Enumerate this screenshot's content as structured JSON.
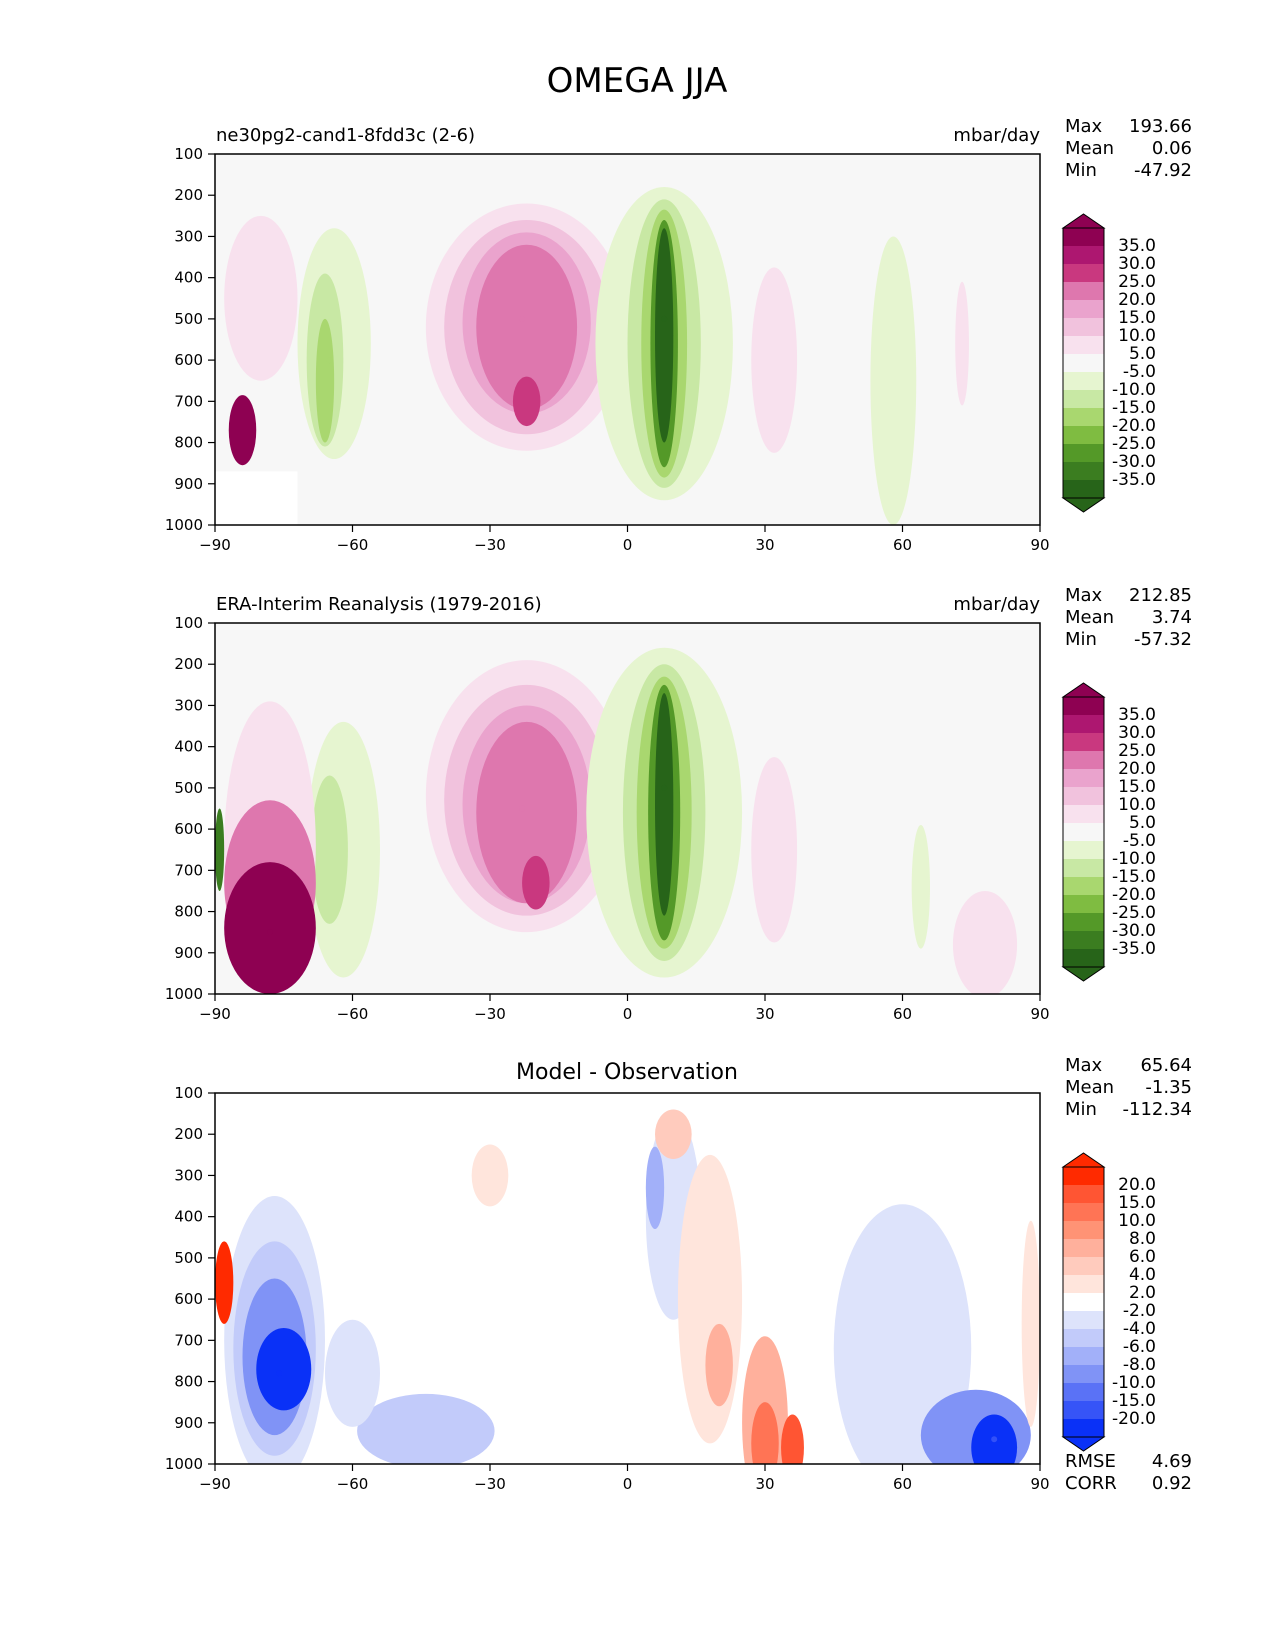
{
  "figure_title": "OMEGA JJA",
  "chart_data": [
    {
      "type": "contour",
      "title": "ne30pg2-cand1-8fdd3c (2-6)",
      "units": "mbar/day",
      "xlabel": "",
      "ylabel": "",
      "xlim": [
        -90,
        90
      ],
      "ylim": [
        1000,
        100
      ],
      "x_ticks": [
        "−90",
        "−60",
        "−30",
        "0",
        "30",
        "60",
        "90"
      ],
      "y_ticks": [
        "100",
        "200",
        "300",
        "400",
        "500",
        "600",
        "700",
        "800",
        "900",
        "1000"
      ],
      "stats": [
        {
          "label": "Max",
          "value": "193.66"
        },
        {
          "label": "Mean",
          "value": "0.06"
        },
        {
          "label": "Min",
          "value": "-47.92"
        }
      ],
      "colorbar_levels": [
        "35.0",
        "30.0",
        "25.0",
        "20.0",
        "15.0",
        "10.0",
        "5.0",
        "-5.0",
        "-10.0",
        "-15.0",
        "-20.0",
        "-25.0",
        "-30.0",
        "-35.0"
      ],
      "colorbar_colors": [
        "#8e0152",
        "#ad1770",
        "#c9387f",
        "#de77ae",
        "#eaa3cd",
        "#f1c2dd",
        "#f8e1ee",
        "#f7f7f7",
        "#e6f5d0",
        "#c8e8a4",
        "#a9d76f",
        "#7fbc41",
        "#549928",
        "#3b7d20",
        "#276419"
      ],
      "features": [
        {
          "name": "ascent-core-itcz",
          "x": 8,
          "p": 500,
          "color": "#276419"
        },
        {
          "name": "descent-core-south-subtropics",
          "x": -23,
          "p": 500,
          "color": "#de77ae"
        },
        {
          "name": "ascent-southern-midlatitudes",
          "x": -65,
          "p": 600,
          "color": "#a9d76f"
        }
      ]
    },
    {
      "type": "contour",
      "title": "ERA-Interim Reanalysis (1979-2016)",
      "units": "mbar/day",
      "xlabel": "",
      "ylabel": "",
      "xlim": [
        -90,
        90
      ],
      "ylim": [
        1000,
        100
      ],
      "x_ticks": [
        "−90",
        "−60",
        "−30",
        "0",
        "30",
        "60",
        "90"
      ],
      "y_ticks": [
        "100",
        "200",
        "300",
        "400",
        "500",
        "600",
        "700",
        "800",
        "900",
        "1000"
      ],
      "stats": [
        {
          "label": "Max",
          "value": "212.85"
        },
        {
          "label": "Mean",
          "value": "3.74"
        },
        {
          "label": "Min",
          "value": "-57.32"
        }
      ],
      "colorbar_levels": [
        "35.0",
        "30.0",
        "25.0",
        "20.0",
        "15.0",
        "10.0",
        "5.0",
        "-5.0",
        "-10.0",
        "-15.0",
        "-20.0",
        "-25.0",
        "-30.0",
        "-35.0"
      ],
      "colorbar_colors": [
        "#8e0152",
        "#ad1770",
        "#c9387f",
        "#de77ae",
        "#eaa3cd",
        "#f1c2dd",
        "#f8e1ee",
        "#f7f7f7",
        "#e6f5d0",
        "#c8e8a4",
        "#a9d76f",
        "#7fbc41",
        "#549928",
        "#3b7d20",
        "#276419"
      ],
      "features": [
        {
          "name": "ascent-core-itcz",
          "x": 8,
          "p": 500,
          "color": "#276419"
        },
        {
          "name": "descent-core-south-subtropics",
          "x": -23,
          "p": 550,
          "color": "#de77ae"
        },
        {
          "name": "strong-descent-antarctica",
          "x": -78,
          "p": 850,
          "color": "#8e0152"
        }
      ]
    },
    {
      "type": "contour",
      "title": "Model - Observation",
      "units": "",
      "xlabel": "",
      "ylabel": "",
      "xlim": [
        -90,
        90
      ],
      "ylim": [
        1000,
        100
      ],
      "x_ticks": [
        "−90",
        "−60",
        "−30",
        "0",
        "30",
        "60",
        "90"
      ],
      "y_ticks": [
        "100",
        "200",
        "300",
        "400",
        "500",
        "600",
        "700",
        "800",
        "900",
        "1000"
      ],
      "stats": [
        {
          "label": "Max",
          "value": "65.64"
        },
        {
          "label": "Mean",
          "value": "-1.35"
        },
        {
          "label": "Min",
          "value": "-112.34"
        }
      ],
      "bottom_stats": [
        {
          "label": "RMSE",
          "value": "4.69"
        },
        {
          "label": "CORR",
          "value": "0.92"
        }
      ],
      "colorbar_levels": [
        "20.0",
        "15.0",
        "10.0",
        "8.0",
        "6.0",
        "4.0",
        "2.0",
        "-2.0",
        "-4.0",
        "-6.0",
        "-8.0",
        "-10.0",
        "-15.0",
        "-20.0"
      ],
      "colorbar_colors": [
        "#ff2a00",
        "#ff5533",
        "#ff7455",
        "#ff9375",
        "#ffb09c",
        "#ffcbbd",
        "#ffe5dc",
        "#ffffff",
        "#dde3fb",
        "#c2cbfa",
        "#a2b0f9",
        "#8093f6",
        "#5a72f6",
        "#3654f7",
        "#0a31f7"
      ],
      "features": [
        {
          "name": "negative-bias-antarctica",
          "x": -76,
          "p": 780,
          "color": "#0a31f7"
        },
        {
          "name": "positive-bias-n-subtropics",
          "x": 30,
          "p": 900,
          "color": "#ff7455"
        },
        {
          "name": "negative-bias-n-highlatitudes",
          "x": 80,
          "p": 940,
          "color": "#3654f7"
        }
      ]
    }
  ]
}
